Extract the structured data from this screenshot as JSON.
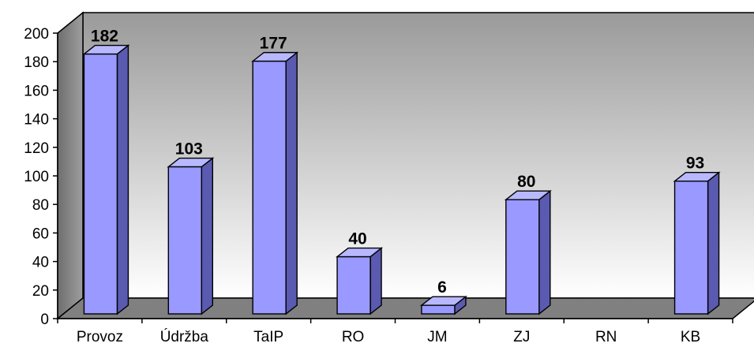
{
  "chart_data": {
    "type": "bar",
    "title": "",
    "xlabel": "",
    "ylabel": "",
    "categories": [
      "Provoz",
      "Údržba",
      "TaIP",
      "RO",
      "JM",
      "ZJ",
      "RN",
      "KB"
    ],
    "values": [
      182,
      103,
      177,
      40,
      6,
      80,
      0,
      93
    ],
    "data_labels": [
      "182",
      "103",
      "177",
      "40",
      "6",
      "80",
      "",
      "93"
    ],
    "ylim": [
      0,
      200
    ],
    "yticks": [
      0,
      20,
      40,
      60,
      80,
      100,
      120,
      140,
      160,
      180,
      200
    ],
    "grid": false,
    "legend": "none",
    "style": "3d-column",
    "colors": {
      "bar_front": "#9999ff",
      "bar_side": "#5a5ab0",
      "bar_top": "#b8b8ff",
      "back_wall_top": "#9a9a9a",
      "back_wall_bottom": "#ffffff",
      "side_wall": "#7a7a7a",
      "floor": "#808080"
    }
  }
}
